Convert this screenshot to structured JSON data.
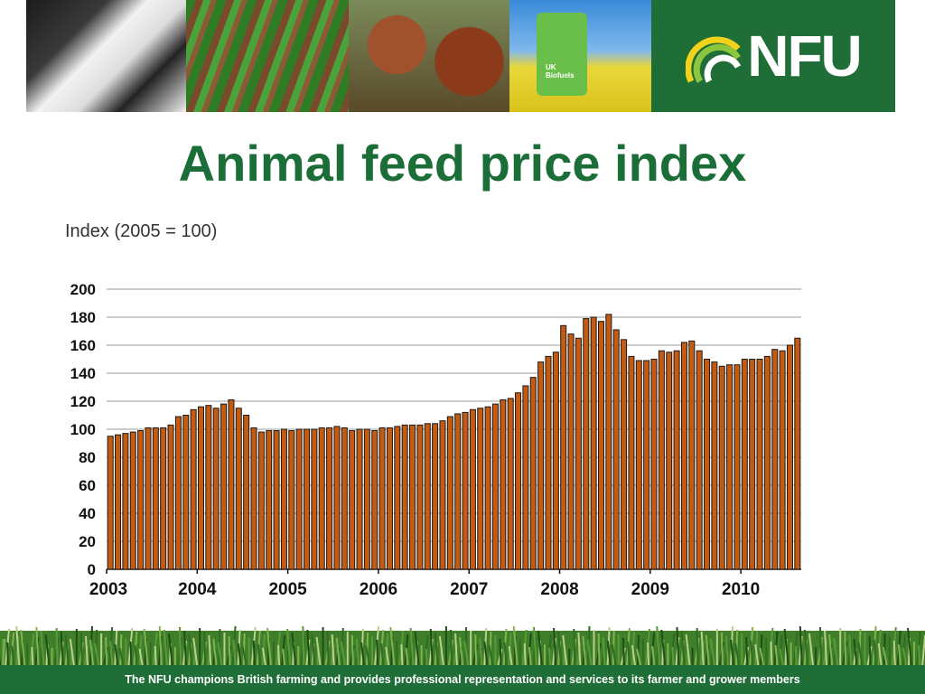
{
  "header": {
    "fuel_pump_label": "UK\nBiofuels",
    "logo_text": "NFU"
  },
  "slide": {
    "title": "Animal feed price index"
  },
  "footer": {
    "text": "The NFU champions British farming and provides professional representation and services to its farmer and grower members"
  },
  "colors": {
    "brand_green": "#1f6e37",
    "title_green": "#1b6e38",
    "bar_fill": "#c55a11",
    "bar_outline": "#1a1a1a"
  },
  "chart_data": {
    "type": "bar",
    "ylabel": "Index (2005 = 100)",
    "xlabel": "",
    "ylim": [
      0,
      200
    ],
    "yticks": [
      0,
      20,
      40,
      60,
      80,
      100,
      120,
      140,
      160,
      180,
      200
    ],
    "x_year_labels": [
      "2003",
      "2004",
      "2005",
      "2006",
      "2007",
      "2008",
      "2009",
      "2010"
    ],
    "x_start_year": 2003,
    "grid": true,
    "legend": "none",
    "values": [
      95,
      96,
      97,
      98,
      99,
      101,
      101,
      101,
      103,
      109,
      110,
      114,
      116,
      117,
      115,
      118,
      121,
      115,
      110,
      101,
      98,
      99,
      99,
      100,
      99,
      100,
      100,
      100,
      101,
      101,
      102,
      101,
      99,
      100,
      100,
      99,
      101,
      101,
      102,
      103,
      103,
      103,
      104,
      104,
      106,
      109,
      111,
      112,
      114,
      115,
      116,
      118,
      121,
      122,
      126,
      131,
      137,
      148,
      152,
      155,
      174,
      168,
      165,
      179,
      180,
      177,
      182,
      171,
      164,
      152,
      149,
      149,
      150,
      156,
      155,
      156,
      162,
      163,
      156,
      150,
      148,
      145,
      146,
      146,
      150,
      150,
      150,
      152,
      157,
      156,
      160,
      165
    ]
  }
}
